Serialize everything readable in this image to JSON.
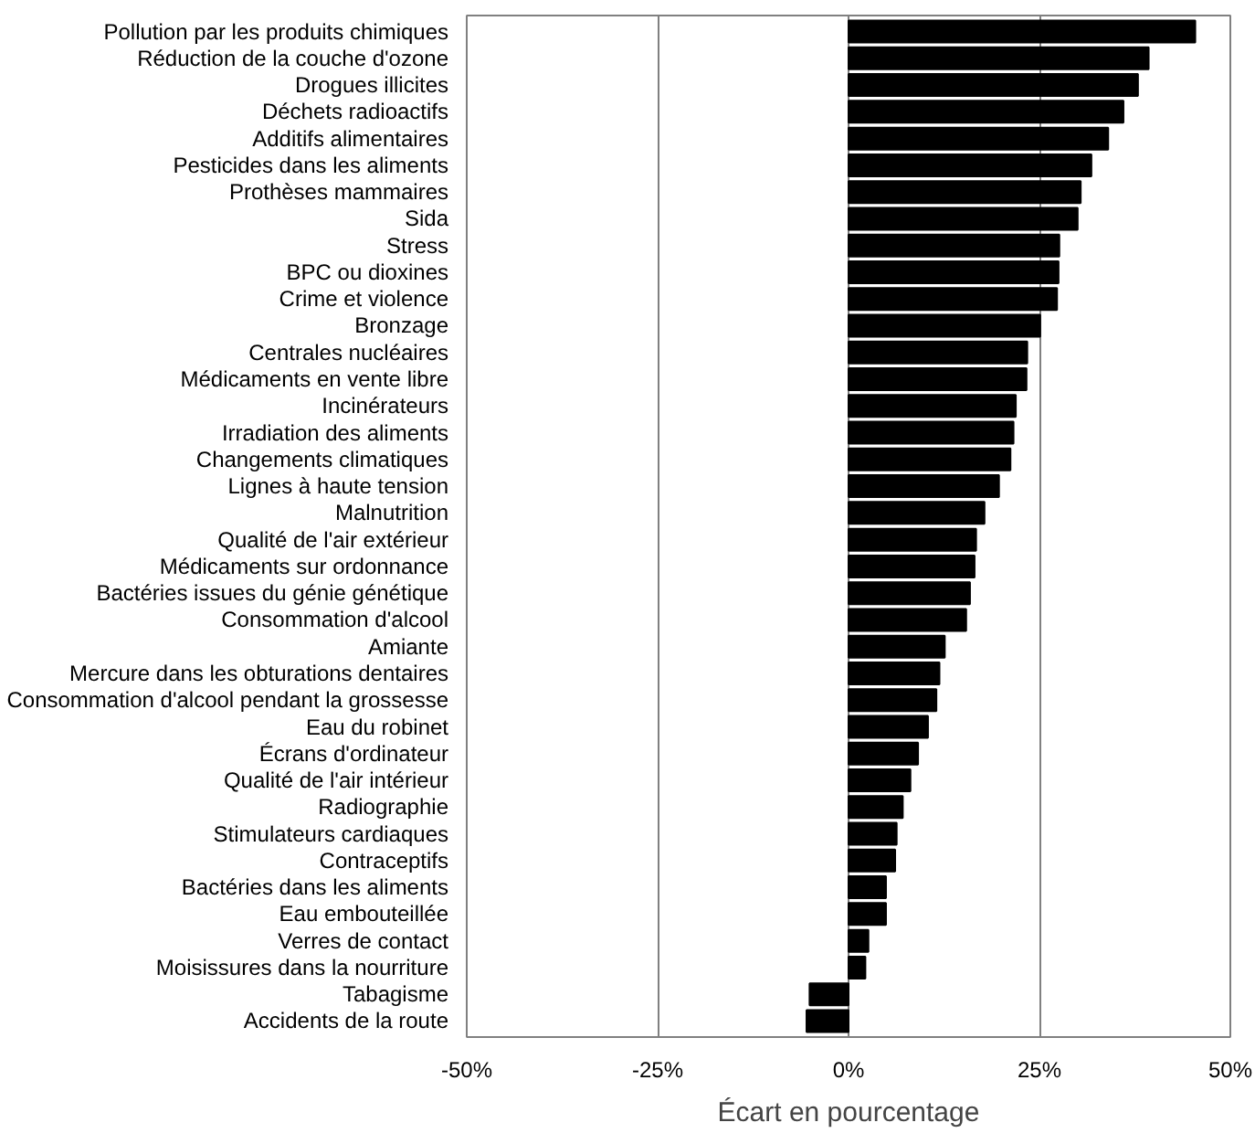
{
  "chart_data": {
    "type": "bar",
    "orientation": "horizontal",
    "xlabel": "Écart en pourcentage",
    "categories": [
      "Pollution par les produits chimiques",
      "Réduction de la couche d'ozone",
      "Drogues illicites",
      "Déchets radioactifs",
      "Additifs alimentaires",
      "Pesticides dans les aliments",
      "Prothèses mammaires",
      "Sida",
      "Stress",
      "BPC ou dioxines",
      "Crime et violence",
      "Bronzage",
      "Centrales nucléaires",
      "Médicaments en vente libre",
      "Incinérateurs",
      "Irradiation des aliments",
      "Changements climatiques",
      "Lignes à haute tension",
      "Malnutrition",
      "Qualité de l'air extérieur",
      "Médicaments sur ordonnance",
      "Bactéries issues du génie génétique",
      "Consommation d'alcool",
      "Amiante",
      "Mercure dans les obturations dentaires",
      "Consommation d'alcool pendant la grossesse",
      "Eau du robinet",
      "Écrans d'ordinateur",
      "Qualité de l'air intérieur",
      "Radiographie",
      "Stimulateurs cardiaques",
      "Contraceptifs",
      "Bactéries dans les aliments",
      "Eau embouteillée",
      "Verres de contact",
      "Moisissures dans la nourriture",
      "Tabagisme",
      "Accidents de la route"
    ],
    "values": [
      45.4,
      39.3,
      37.9,
      36.0,
      34.0,
      31.8,
      30.4,
      30.0,
      27.6,
      27.5,
      27.3,
      25.1,
      23.4,
      23.3,
      21.9,
      21.6,
      21.2,
      19.7,
      17.8,
      16.7,
      16.5,
      15.9,
      15.4,
      12.6,
      11.9,
      11.5,
      10.4,
      9.1,
      8.1,
      7.1,
      6.3,
      6.1,
      4.9,
      4.9,
      2.6,
      2.2,
      -5.1,
      -5.5
    ],
    "color": "#000000",
    "xlim": [
      -50,
      50
    ],
    "xticks": [
      {
        "value": -50,
        "label": "-50%"
      },
      {
        "value": -25,
        "label": "-25%"
      },
      {
        "value": 0,
        "label": "0%"
      },
      {
        "value": 25,
        "label": "25%"
      },
      {
        "value": 50,
        "label": "50%"
      }
    ],
    "grid": "x"
  }
}
